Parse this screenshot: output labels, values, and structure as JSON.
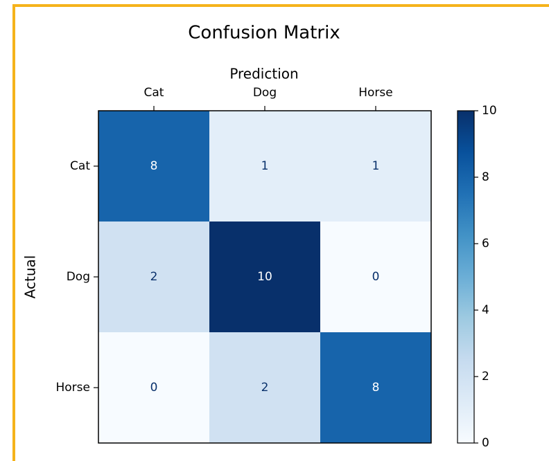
{
  "chart_data": {
    "type": "heatmap",
    "title": "Confusion Matrix",
    "x_label": "Prediction",
    "y_label": "Actual",
    "x_categories": [
      "Cat",
      "Dog",
      "Horse"
    ],
    "y_categories": [
      "Cat",
      "Dog",
      "Horse"
    ],
    "values": [
      [
        8,
        1,
        1
      ],
      [
        2,
        10,
        0
      ],
      [
        0,
        2,
        8
      ]
    ],
    "colormap": "Blues",
    "clim": [
      0,
      10
    ],
    "cticks": [
      0,
      2,
      4,
      6,
      8,
      10
    ]
  }
}
